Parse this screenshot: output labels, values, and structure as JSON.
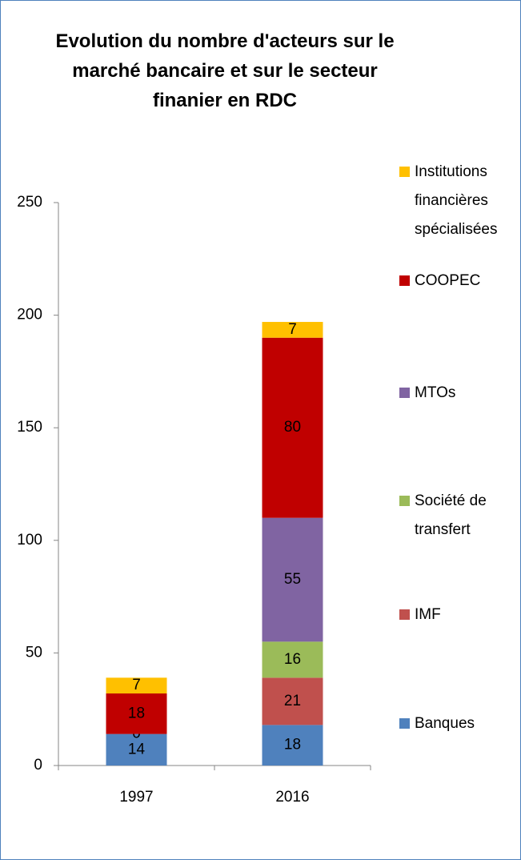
{
  "chart_data": {
    "type": "stacked_bar",
    "title": "Evolution du nombre d'acteurs sur le marché bancaire et sur le secteur finanier en RDC",
    "categories": [
      "1997",
      "2016"
    ],
    "series": [
      {
        "name": "Banques",
        "color": "#4f81bd",
        "values": [
          14,
          18
        ]
      },
      {
        "name": "IMF",
        "color": "#c0504d",
        "values": [
          0,
          21
        ]
      },
      {
        "name": "Société de transfert",
        "color": "#9bbb59",
        "values": [
          null,
          16
        ]
      },
      {
        "name": "MTOs",
        "color": "#8064a2",
        "values": [
          null,
          55
        ]
      },
      {
        "name": "COOPEC",
        "color": "#c00000",
        "values": [
          18,
          80
        ]
      },
      {
        "name": "Institutions financières spécialisées",
        "color": "#ffc000",
        "values": [
          7,
          7
        ]
      }
    ],
    "ylim": [
      0,
      250
    ],
    "yticks": [
      0,
      50,
      100,
      150,
      200,
      250
    ],
    "legend": "right"
  }
}
